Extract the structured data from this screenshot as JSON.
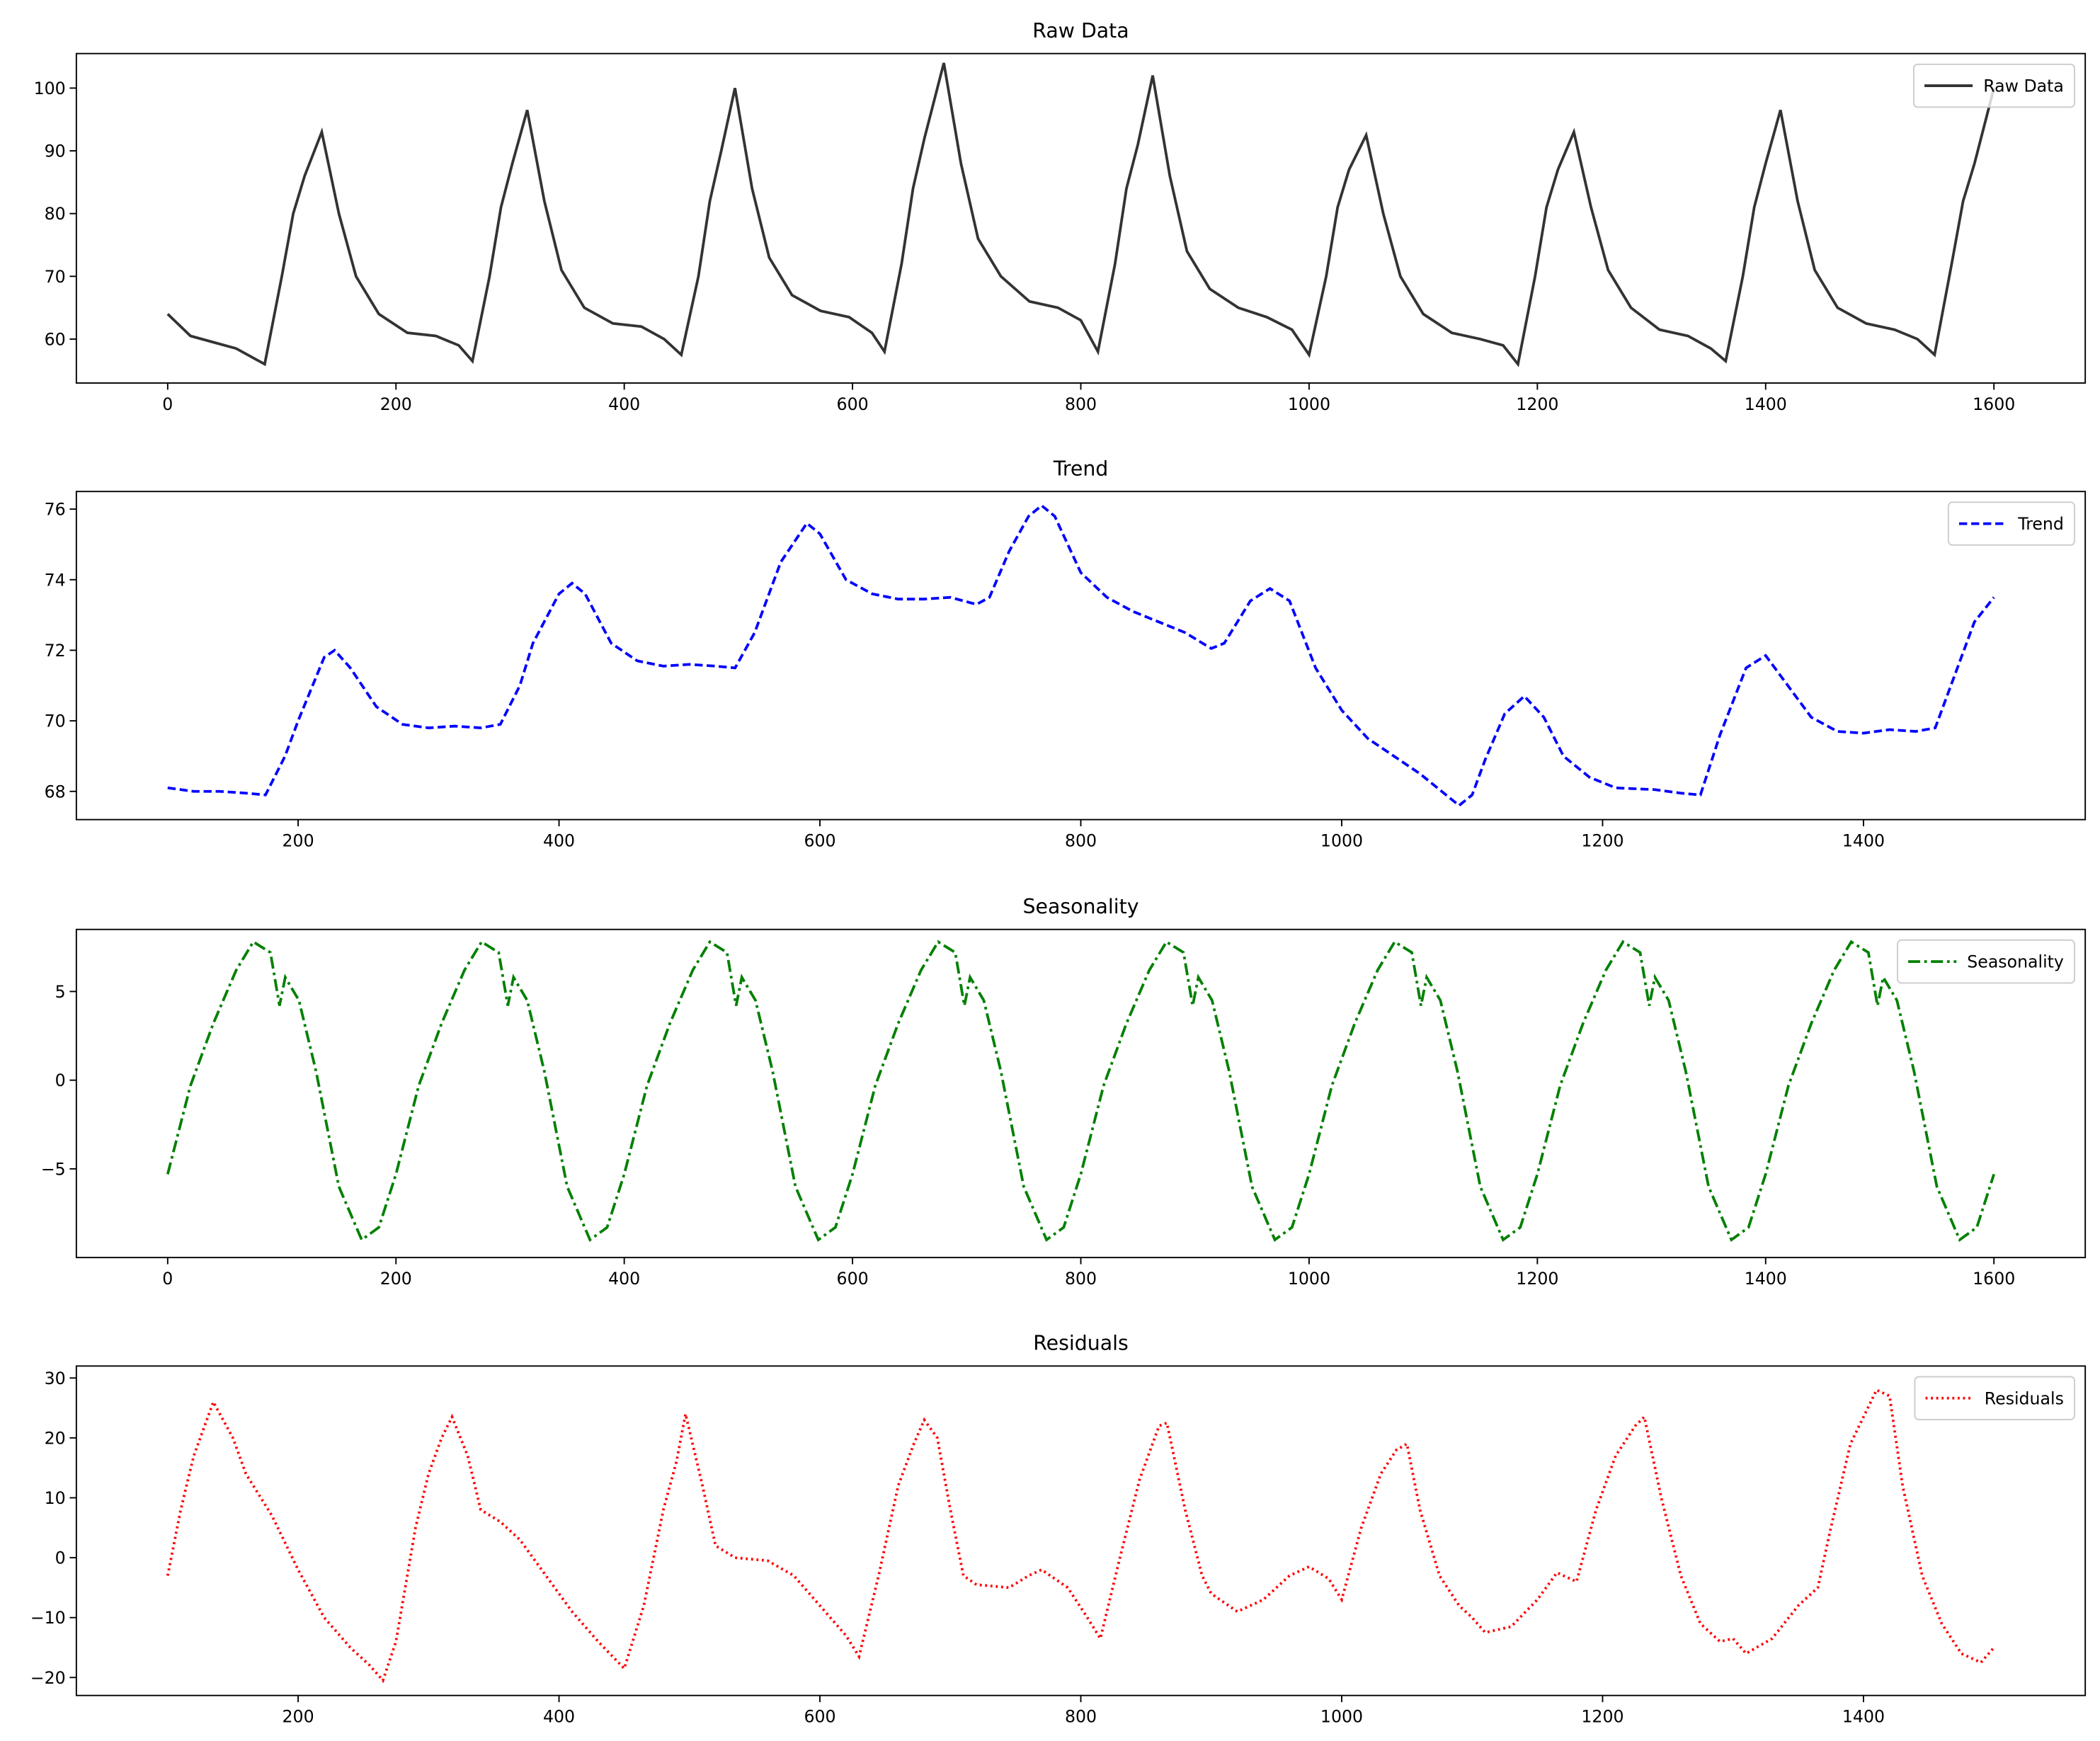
{
  "chart_data": [
    {
      "type": "line",
      "title": "Raw Data",
      "legend": "upper right",
      "linestyle": "solid",
      "xlim": [
        -80,
        1680
      ],
      "xticks": [
        0,
        200,
        400,
        600,
        800,
        1000,
        1200,
        1400,
        1600
      ],
      "ylim": [
        53,
        105.5
      ],
      "yticks": [
        60,
        70,
        80,
        90,
        100
      ],
      "x": [
        0,
        20,
        40,
        60,
        85,
        100,
        110,
        120,
        135,
        150,
        165,
        185,
        210,
        235,
        255,
        267,
        282,
        292,
        302,
        315,
        330,
        345,
        365,
        390,
        415,
        435,
        450,
        465,
        475,
        485,
        497,
        512,
        527,
        547,
        572,
        597,
        617,
        628,
        643,
        653,
        663,
        680,
        695,
        710,
        730,
        755,
        780,
        800,
        815,
        830,
        840,
        850,
        863,
        878,
        893,
        913,
        938,
        963,
        985,
        1000,
        1015,
        1025,
        1035,
        1050,
        1065,
        1080,
        1100,
        1125,
        1150,
        1170,
        1183,
        1198,
        1208,
        1218,
        1232,
        1247,
        1262,
        1282,
        1307,
        1332,
        1352,
        1365,
        1380,
        1390,
        1400,
        1413,
        1428,
        1443,
        1463,
        1488,
        1513,
        1533,
        1548,
        1563,
        1573,
        1583,
        1600
      ],
      "series": [
        {
          "name": "Raw Data",
          "color": "#333333",
          "values": [
            64,
            60.5,
            59.5,
            58.5,
            56,
            70,
            80,
            86,
            93,
            80,
            70,
            64,
            61,
            60.5,
            59,
            56.5,
            70,
            81,
            88,
            96.5,
            82,
            71,
            65,
            62.5,
            62,
            60,
            57.5,
            70,
            82,
            90,
            100,
            84,
            73,
            67,
            64.5,
            63.5,
            61,
            58,
            72,
            84,
            92,
            104,
            88,
            76,
            70,
            66,
            65,
            63,
            58,
            72,
            84,
            91,
            102,
            86,
            74,
            68,
            65,
            63.5,
            61.5,
            57.5,
            70,
            81,
            87,
            92.5,
            80,
            70,
            64,
            61,
            60,
            59,
            56,
            70,
            81,
            87,
            93,
            81,
            71,
            65,
            61.5,
            60.5,
            58.5,
            56.5,
            70,
            81,
            88,
            96.5,
            82,
            71,
            65,
            62.5,
            61.5,
            60,
            57.5,
            72,
            82,
            88,
            100
          ]
        }
      ]
    },
    {
      "type": "line",
      "title": "Trend",
      "legend": "upper right",
      "linestyle": "dashed",
      "xlim": [
        30,
        1570
      ],
      "xticks": [
        200,
        400,
        600,
        800,
        1000,
        1200,
        1400
      ],
      "ylim": [
        67.2,
        76.5
      ],
      "yticks": [
        68,
        70,
        72,
        74,
        76
      ],
      "x": [
        100,
        120,
        140,
        160,
        175,
        190,
        200,
        220,
        228,
        240,
        260,
        280,
        300,
        320,
        340,
        355,
        370,
        380,
        400,
        410,
        420,
        440,
        460,
        480,
        500,
        520,
        535,
        550,
        570,
        590,
        600,
        620,
        640,
        660,
        680,
        700,
        720,
        730,
        745,
        760,
        770,
        780,
        800,
        820,
        840,
        860,
        880,
        900,
        910,
        930,
        945,
        960,
        980,
        1000,
        1020,
        1040,
        1060,
        1080,
        1090,
        1100,
        1110,
        1125,
        1140,
        1155,
        1170,
        1190,
        1210,
        1240,
        1260,
        1275,
        1290,
        1310,
        1325,
        1340,
        1360,
        1380,
        1400,
        1420,
        1440,
        1455,
        1470,
        1485,
        1500
      ],
      "series": [
        {
          "name": "Trend",
          "color": "#0000ff",
          "values": [
            68.1,
            68,
            68,
            67.95,
            67.9,
            69,
            70,
            71.8,
            72,
            71.5,
            70.4,
            69.9,
            69.8,
            69.85,
            69.8,
            69.9,
            71,
            72.2,
            73.6,
            73.9,
            73.6,
            72.2,
            71.7,
            71.55,
            71.6,
            71.55,
            71.5,
            72.5,
            74.5,
            75.6,
            75.3,
            74,
            73.6,
            73.45,
            73.45,
            73.5,
            73.3,
            73.5,
            74.8,
            75.8,
            76.1,
            75.8,
            74.2,
            73.5,
            73.1,
            72.8,
            72.5,
            72.05,
            72.2,
            73.4,
            73.75,
            73.4,
            71.5,
            70.3,
            69.5,
            69,
            68.5,
            67.9,
            67.6,
            67.9,
            68.9,
            70.2,
            70.7,
            70.1,
            69,
            68.4,
            68.1,
            68.05,
            67.95,
            67.9,
            69.6,
            71.5,
            71.85,
            71.1,
            70.1,
            69.7,
            69.65,
            69.75,
            69.7,
            69.8,
            71.3,
            72.8,
            73.5
          ]
        }
      ]
    },
    {
      "type": "line",
      "title": "Seasonality",
      "legend": "upper right",
      "linestyle": "dashdot",
      "xlim": [
        -80,
        1680
      ],
      "xticks": [
        0,
        200,
        400,
        600,
        800,
        1000,
        1200,
        1400,
        1600
      ],
      "ylim": [
        -10,
        8.5
      ],
      "yticks": [
        {
          "value": -5,
          "label": "−5"
        },
        0,
        5
      ],
      "x": [
        0,
        20,
        40,
        60,
        75,
        90,
        98,
        103,
        115,
        130,
        150,
        170,
        185,
        200,
        220,
        240,
        260,
        275,
        290,
        298,
        303,
        315,
        330,
        350,
        370,
        385,
        400,
        420,
        440,
        460,
        475,
        490,
        498,
        503,
        515,
        530,
        550,
        570,
        585,
        600,
        620,
        640,
        660,
        675,
        690,
        698,
        703,
        715,
        730,
        750,
        770,
        785,
        800,
        820,
        840,
        860,
        875,
        890,
        898,
        903,
        915,
        930,
        950,
        970,
        985,
        1000,
        1020,
        1040,
        1060,
        1075,
        1090,
        1098,
        1103,
        1115,
        1130,
        1150,
        1170,
        1185,
        1200,
        1220,
        1240,
        1260,
        1275,
        1290,
        1298,
        1303,
        1315,
        1330,
        1350,
        1370,
        1385,
        1400,
        1420,
        1440,
        1460,
        1475,
        1490,
        1498,
        1503,
        1515,
        1530,
        1550,
        1570,
        1585,
        1600
      ],
      "series": [
        {
          "name": "Seasonality",
          "color": "#008000",
          "values": [
            -5.3,
            -0.3,
            3.2,
            6.2,
            7.8,
            7.2,
            4.2,
            5.8,
            4.5,
            0.5,
            -6,
            -9,
            -8.3,
            -5.3,
            -0.3,
            3.2,
            6.2,
            7.8,
            7.2,
            4.2,
            5.8,
            4.5,
            0.5,
            -6,
            -9,
            -8.3,
            -5.3,
            -0.3,
            3.2,
            6.2,
            7.8,
            7.2,
            4.2,
            5.8,
            4.5,
            0.5,
            -6,
            -9,
            -8.3,
            -5.3,
            -0.3,
            3.2,
            6.2,
            7.8,
            7.2,
            4.2,
            5.8,
            4.5,
            0.5,
            -6,
            -9,
            -8.3,
            -5.3,
            -0.3,
            3.2,
            6.2,
            7.8,
            7.2,
            4.2,
            5.8,
            4.5,
            0.5,
            -6,
            -9,
            -8.3,
            -5.3,
            -0.3,
            3.2,
            6.2,
            7.8,
            7.2,
            4.2,
            5.8,
            4.5,
            0.5,
            -6,
            -9,
            -8.3,
            -5.3,
            -0.3,
            3.2,
            6.2,
            7.8,
            7.2,
            4.2,
            5.8,
            4.5,
            0.5,
            -6,
            -9,
            -8.3,
            -5.3,
            -0.3,
            3.2,
            6.2,
            7.8,
            7.2,
            4.2,
            5.8,
            4.5,
            0.5,
            -6,
            -9,
            -8.3,
            -5.3
          ]
        }
      ]
    },
    {
      "type": "line",
      "title": "Residuals",
      "legend": "upper right",
      "linestyle": "dotted",
      "xlim": [
        30,
        1570
      ],
      "xticks": [
        200,
        400,
        600,
        800,
        1000,
        1200,
        1400
      ],
      "ylim": [
        -23,
        32
      ],
      "yticks": [
        {
          "value": -20,
          "label": "−20"
        },
        {
          "value": -10,
          "label": "−10"
        },
        0,
        10,
        20,
        30
      ],
      "x": [
        100,
        110,
        120,
        135,
        150,
        160,
        180,
        200,
        220,
        240,
        255,
        265,
        275,
        290,
        300,
        310,
        318,
        330,
        340,
        355,
        370,
        390,
        410,
        430,
        450,
        465,
        480,
        490,
        497,
        510,
        520,
        535,
        560,
        580,
        600,
        620,
        630,
        645,
        660,
        672,
        680,
        690,
        700,
        710,
        720,
        745,
        760,
        770,
        790,
        805,
        815,
        830,
        845,
        860,
        866,
        880,
        893,
        900,
        920,
        940,
        960,
        975,
        990,
        1000,
        1015,
        1030,
        1042,
        1050,
        1060,
        1075,
        1090,
        1100,
        1110,
        1130,
        1150,
        1165,
        1180,
        1195,
        1210,
        1225,
        1232,
        1245,
        1260,
        1275,
        1290,
        1300,
        1310,
        1330,
        1350,
        1365,
        1375,
        1390,
        1410,
        1420,
        1430,
        1445,
        1460,
        1475,
        1490,
        1500
      ],
      "series": [
        {
          "name": "Residuals",
          "color": "#ff0000",
          "values": [
            -3,
            8,
            17,
            26,
            20,
            14,
            7,
            -2,
            -10,
            -15,
            -18,
            -20.5,
            -14,
            5,
            14,
            20,
            23.5,
            17,
            8,
            6,
            3,
            -3,
            -9,
            -14,
            -18.5,
            -8,
            8,
            16,
            24,
            12,
            2,
            0,
            -0.5,
            -3,
            -8,
            -13,
            -16.5,
            -3,
            12,
            19,
            23,
            20,
            8,
            -3,
            -4.5,
            -5,
            -3,
            -2,
            -5,
            -10,
            -13.5,
            0,
            13,
            22,
            22.5,
            8,
            -3,
            -6,
            -9,
            -7,
            -3,
            -1.5,
            -3.5,
            -7,
            5,
            14,
            18,
            19,
            8,
            -3,
            -8,
            -10,
            -12.5,
            -11.5,
            -7,
            -2.5,
            -4,
            8,
            17,
            22,
            23.5,
            10,
            -3,
            -11,
            -14,
            -13.5,
            -16,
            -13.5,
            -8,
            -5,
            5,
            19,
            28,
            27,
            12,
            -3,
            -11,
            -16,
            -17.5,
            -15
          ]
        }
      ]
    }
  ]
}
